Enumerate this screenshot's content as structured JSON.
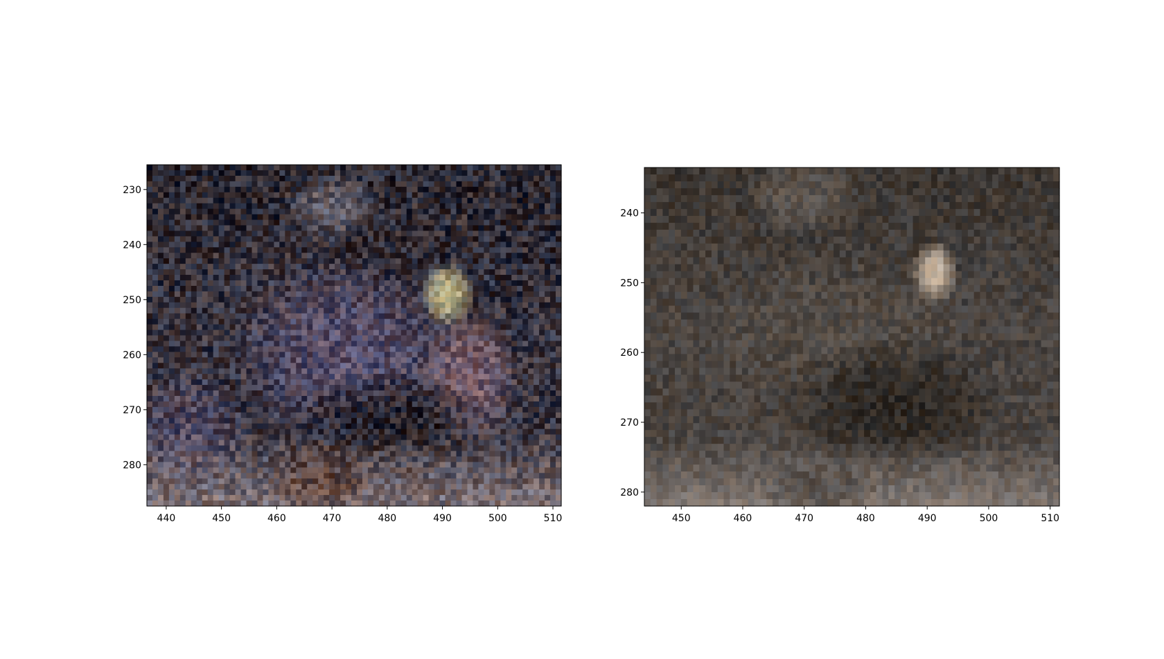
{
  "figure": {
    "background": "#ffffff",
    "panels": [
      {
        "id": "left",
        "x_range": [
          436.5,
          511.5
        ],
        "y_range": [
          225.5,
          287.5
        ],
        "x_ticks": [
          440,
          450,
          460,
          470,
          480,
          490,
          500,
          510
        ],
        "y_ticks": [
          230,
          240,
          250,
          260,
          270,
          280
        ],
        "palette": {
          "base": "#3a3540",
          "dark": "#1a171d",
          "mid_purple": "#5e5577",
          "light_grey": "#8d8690",
          "pink": "#8a6a78",
          "warm_brown": "#5a3a2e",
          "sand": "#9d8d8f",
          "highlight": "#c8bf90"
        }
      },
      {
        "id": "right",
        "x_range": [
          444,
          511.5
        ],
        "y_range": [
          233.5,
          282
        ],
        "x_ticks": [
          450,
          460,
          470,
          480,
          490,
          500,
          510
        ],
        "y_ticks": [
          240,
          250,
          260,
          270,
          280
        ],
        "palette": {
          "base": "#4a4440",
          "dark": "#2a2520",
          "mid": "#5c544c",
          "light": "#8a8078",
          "floor": "#9a8f88",
          "highlight": "#cbb8a3"
        }
      }
    ]
  }
}
